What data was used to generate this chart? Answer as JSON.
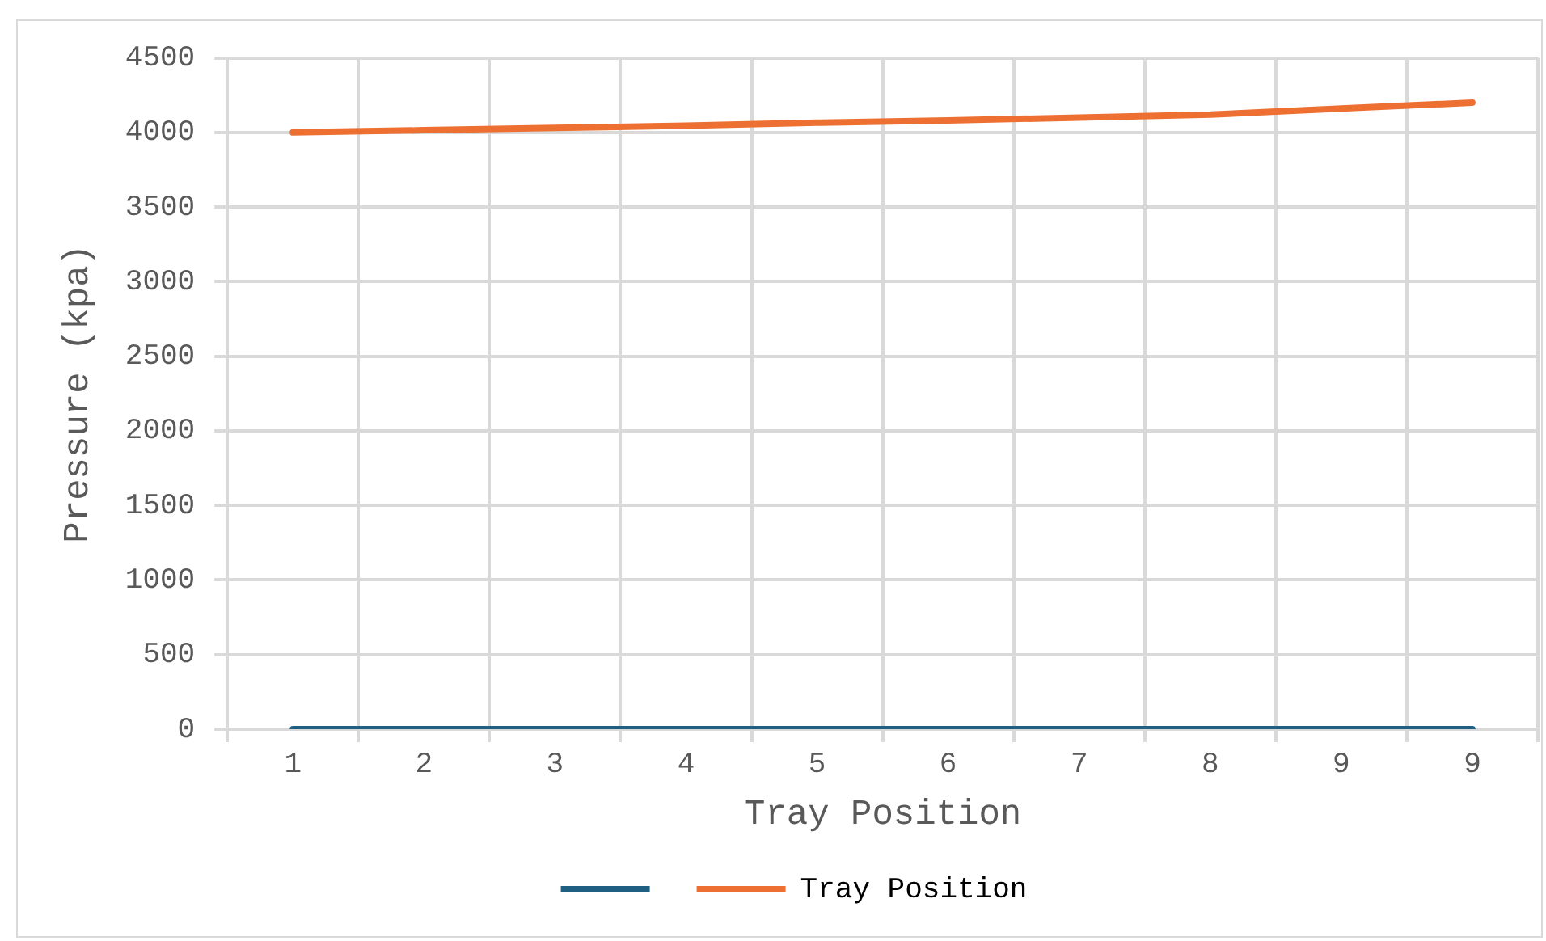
{
  "chart_data": {
    "type": "line",
    "xlabel": "Tray Position",
    "ylabel": "Pressure (kpa)",
    "categories": [
      "1",
      "2",
      "3",
      "4",
      "5",
      "6",
      "7",
      "8",
      "9",
      "9"
    ],
    "series": [
      {
        "color": "#1f5f82",
        "values": [
          0,
          0,
          0,
          0,
          0,
          0,
          0,
          0,
          0,
          0
        ]
      },
      {
        "name": "Tray Position",
        "color": "#ed7032",
        "values": [
          4000,
          4015,
          4030,
          4045,
          4065,
          4080,
          4100,
          4120,
          4160,
          4200
        ]
      }
    ],
    "ylim": [
      0,
      4500
    ],
    "yticks": [
      0,
      500,
      1000,
      1500,
      2000,
      2500,
      3000,
      3500,
      4000,
      4500
    ],
    "grid": true,
    "legend": "bottom",
    "marker": "none"
  }
}
